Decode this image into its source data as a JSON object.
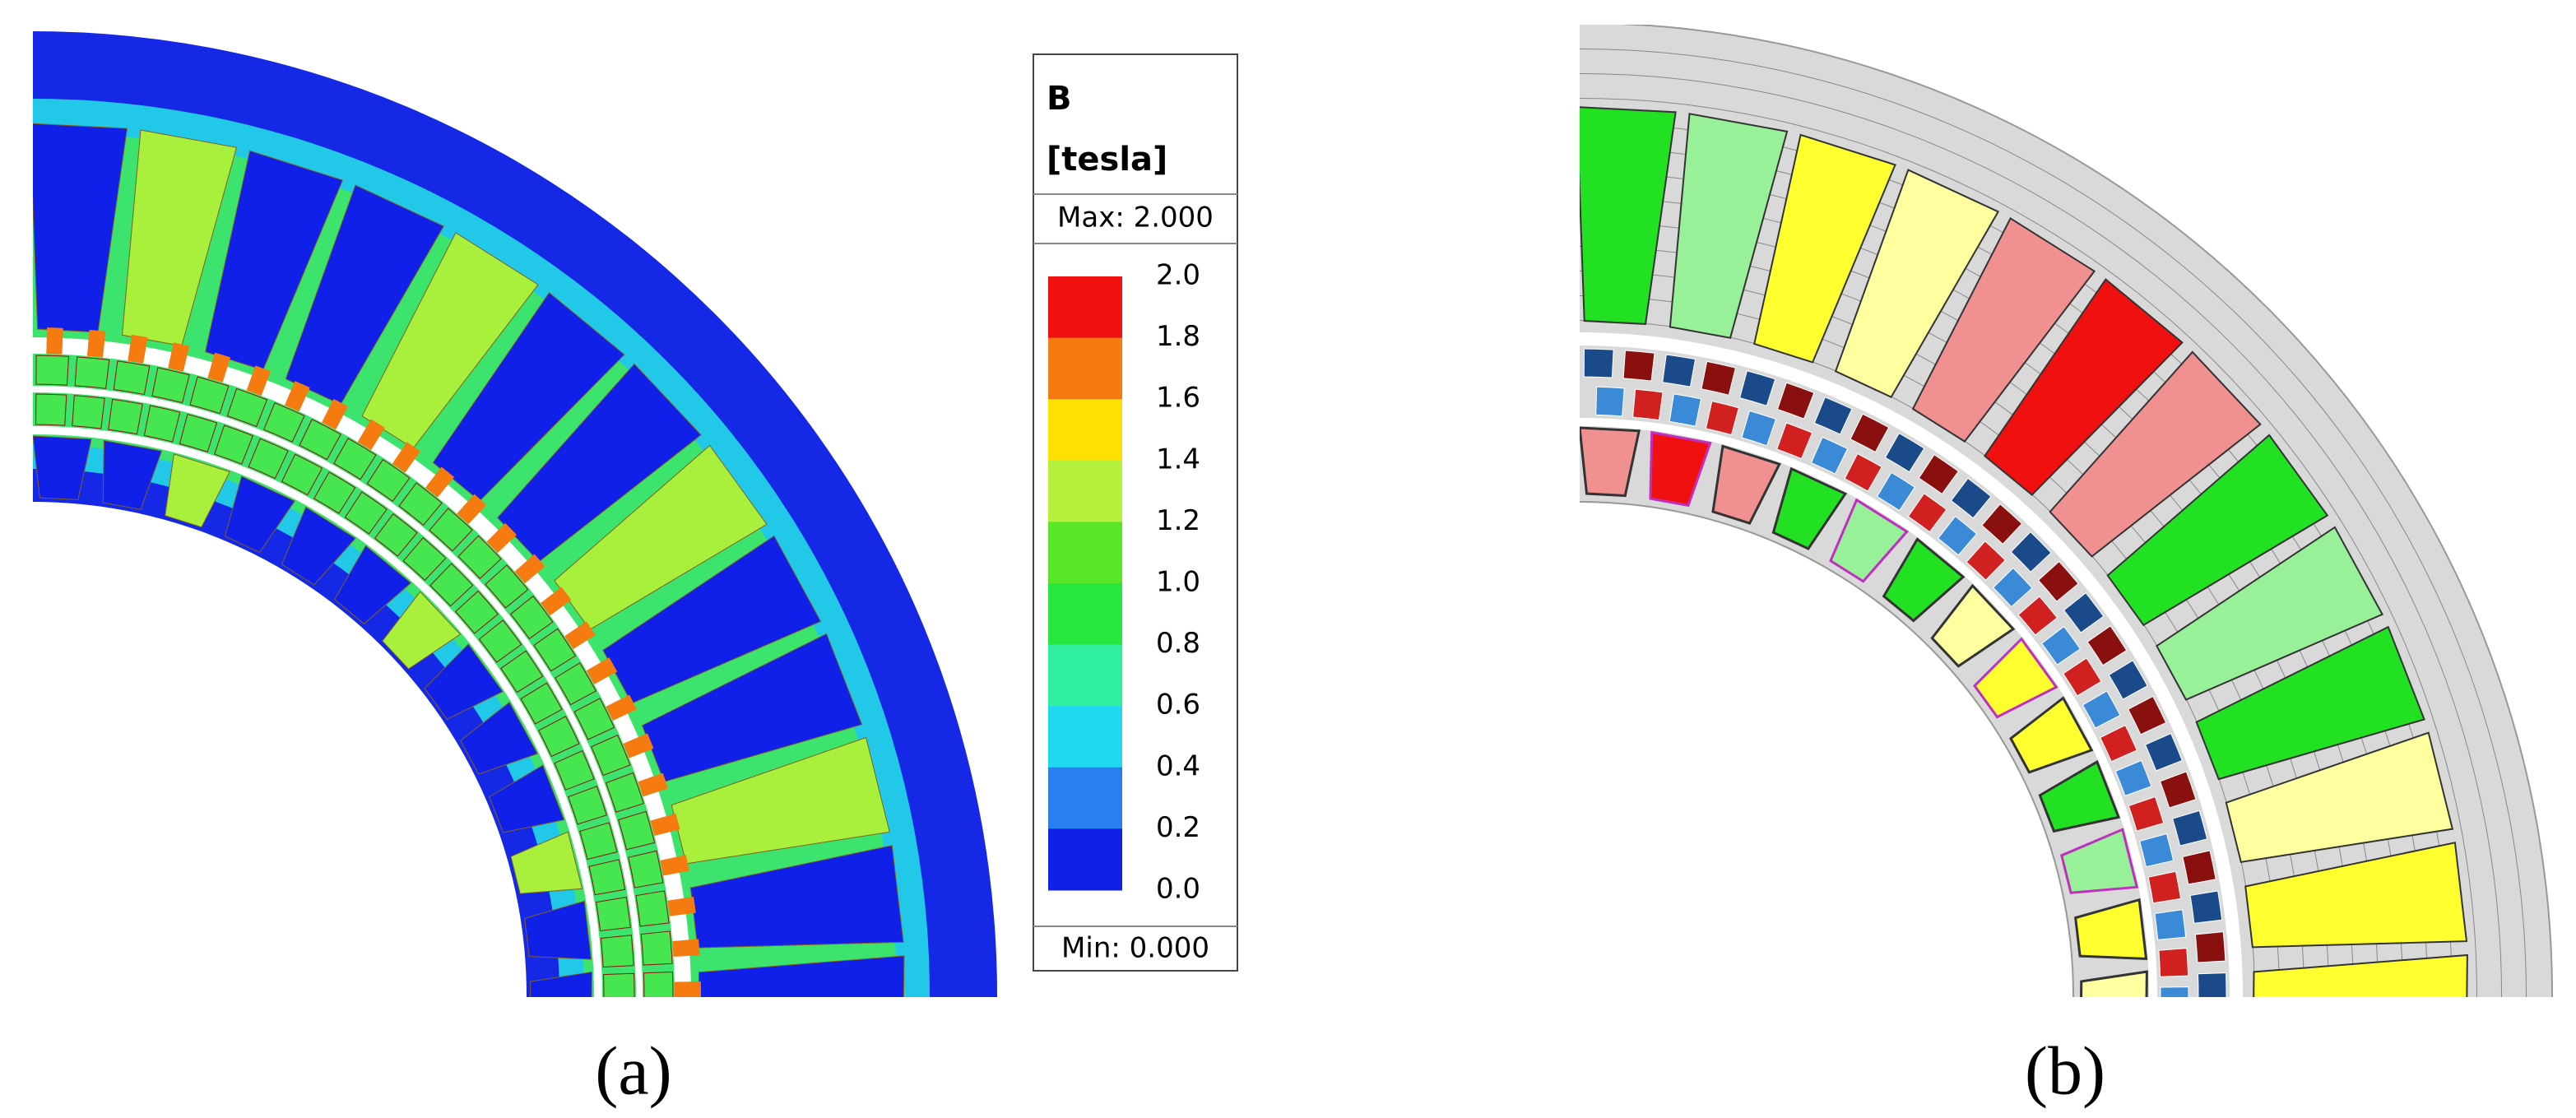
{
  "legend": {
    "title": "B",
    "unit": "[tesla]",
    "max": "Max: 2.000",
    "min": "Min: 0.000",
    "ticks": [
      "2.0",
      "1.8",
      "1.6",
      "1.4",
      "1.2",
      "1.0",
      "0.8",
      "0.6",
      "0.4",
      "0.2",
      "0.0"
    ],
    "colors": [
      "#f01010",
      "#f57a10",
      "#ffe000",
      "#b4f03c",
      "#5ae628",
      "#28e640",
      "#30f0a0",
      "#20d8f0",
      "#2880f0",
      "#1020e8"
    ]
  },
  "captions": [
    "(a)",
    "(b)"
  ]
}
